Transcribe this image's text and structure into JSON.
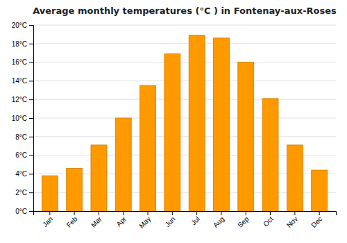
{
  "chart_data": {
    "type": "bar",
    "title": "Average monthly temperatures (°C ) in Fontenay-aux-Roses",
    "categories": [
      "Jan",
      "Feb",
      "Mar",
      "Apr",
      "May",
      "Jun",
      "Jul",
      "Aug",
      "Sep",
      "Oct",
      "Nov",
      "Dec"
    ],
    "values": [
      3.8,
      4.6,
      7.1,
      10.0,
      13.5,
      16.9,
      18.9,
      18.6,
      16.0,
      12.1,
      7.1,
      4.4
    ],
    "color": "#FF9900",
    "ylim": [
      0,
      20
    ],
    "yticks": [
      {
        "value": 0,
        "label": "0°C"
      },
      {
        "value": 2,
        "label": "2°C"
      },
      {
        "value": 4,
        "label": "4°C"
      },
      {
        "value": 6,
        "label": "6°C"
      },
      {
        "value": 8,
        "label": "8°C"
      },
      {
        "value": 10,
        "label": "10°C"
      },
      {
        "value": 12,
        "label": "12°C"
      },
      {
        "value": 14,
        "label": "14°C"
      },
      {
        "value": 16,
        "label": "16°C"
      },
      {
        "value": 18,
        "label": "18°C"
      },
      {
        "value": 20,
        "label": "20°C"
      }
    ],
    "grid": true
  }
}
